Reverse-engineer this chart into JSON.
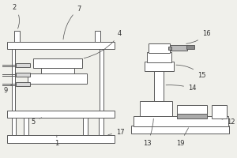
{
  "bg_color": "#f0f0eb",
  "line_color": "#5a5a5a",
  "lw": 0.7,
  "fig_w": 3.0,
  "fig_h": 2.0,
  "dpi": 100
}
